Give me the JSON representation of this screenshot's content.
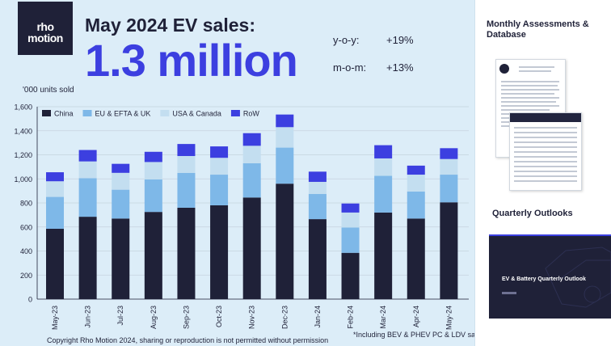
{
  "logo": {
    "line1": "rho",
    "line2": "motion"
  },
  "headline": "May 2024 EV sales:",
  "big_number": "1.3 million",
  "stats": [
    {
      "label": "y-o-y:",
      "value": "+19%"
    },
    {
      "label": "m-o-m:",
      "value": "+13%"
    }
  ],
  "footer": {
    "copyright": "Copyright Rho Motion 2024, sharing or reproduction is not permitted without permission",
    "footnote": "*Including BEV & PHEV PC & LDV sales"
  },
  "sidebar": {
    "monthly_title": "Monthly Assessments & Database",
    "quarterly_title": "Quarterly Outlooks",
    "cover_title": "EV & Battery Quarterly Outlook"
  },
  "colors": {
    "china": "#1f2138",
    "eu": "#7eb8e8",
    "usa": "#c3def0",
    "row": "#3c3fe0"
  },
  "chart_data": {
    "type": "bar",
    "stacked": true,
    "ylabel": "'000 units sold",
    "ylim": [
      0,
      1600
    ],
    "yticks": [
      0,
      200,
      400,
      600,
      800,
      1000,
      1200,
      1400,
      1600
    ],
    "ytick_labels": [
      "0",
      "200",
      "400",
      "600",
      "800",
      "1,000",
      "1,200",
      "1,400",
      "1,600"
    ],
    "grid": true,
    "legend_position": "top-left",
    "categories": [
      "May-23",
      "Jun-23",
      "Jul-23",
      "Aug-23",
      "Sep-23",
      "Oct-23",
      "Nov-23",
      "Dec-23",
      "Jan-24",
      "Feb-24",
      "Mar-24",
      "Apr-24",
      "May-24"
    ],
    "series": [
      {
        "name": "China",
        "values": [
          585,
          685,
          670,
          725,
          760,
          780,
          845,
          960,
          665,
          385,
          720,
          670,
          805
        ]
      },
      {
        "name": "EU & EFTA & UK",
        "values": [
          265,
          320,
          240,
          270,
          290,
          255,
          285,
          300,
          210,
          210,
          305,
          225,
          230
        ]
      },
      {
        "name": "USA & Canada",
        "values": [
          130,
          140,
          140,
          145,
          140,
          140,
          145,
          170,
          100,
          125,
          145,
          140,
          130
        ]
      },
      {
        "name": "RoW",
        "values": [
          75,
          95,
          75,
          85,
          100,
          95,
          105,
          105,
          85,
          75,
          110,
          75,
          90
        ]
      }
    ]
  }
}
